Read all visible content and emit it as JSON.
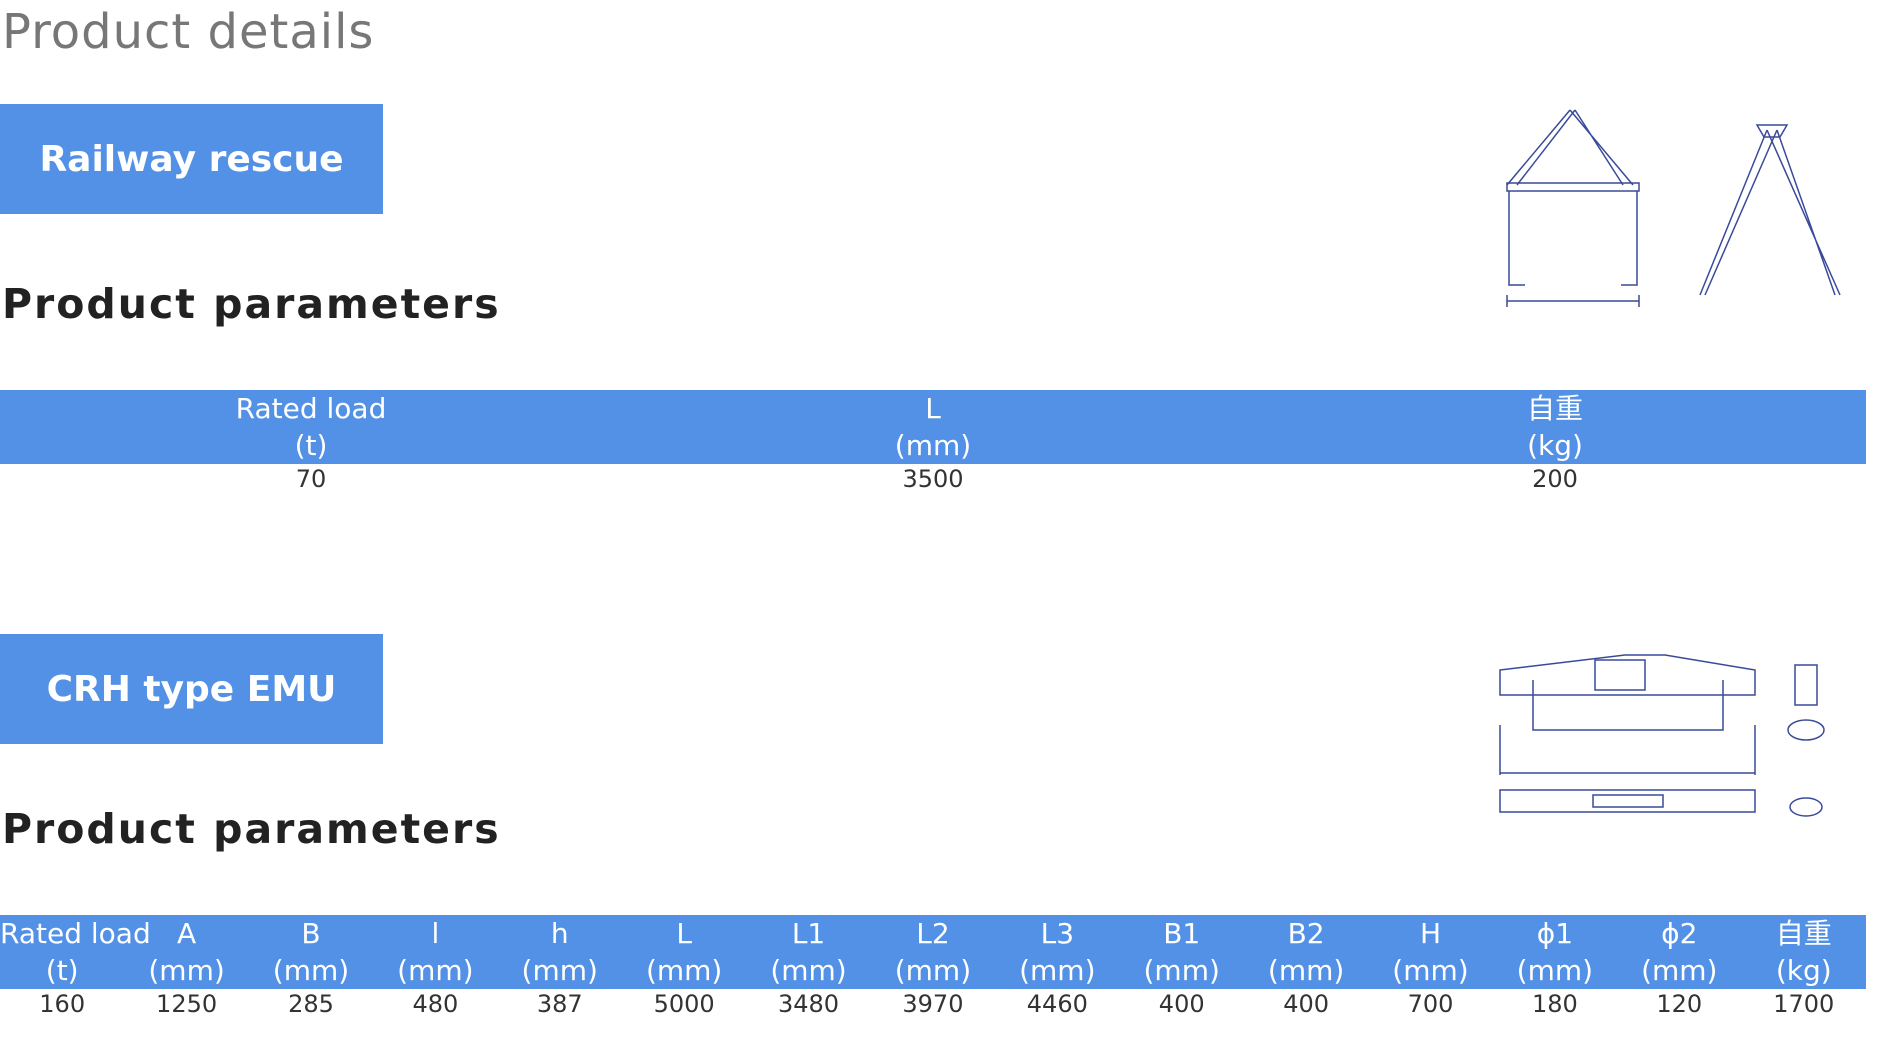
{
  "header": {
    "title": "Product details"
  },
  "sections": [
    {
      "title": "Railway rescue",
      "params_title": "Product parameters",
      "table": {
        "columns": [
          {
            "name": "Rated load",
            "unit": "(t)"
          },
          {
            "name": "L",
            "unit": "(mm)"
          },
          {
            "name": "自重",
            "unit": "(kg)"
          }
        ],
        "rows": [
          [
            "70",
            "3500",
            "200"
          ]
        ]
      }
    },
    {
      "title": "CRH type EMU",
      "params_title": "Product parameters",
      "table": {
        "columns": [
          {
            "name": "Rated load",
            "unit": "(t)"
          },
          {
            "name": "A",
            "unit": "(mm)"
          },
          {
            "name": "B",
            "unit": "(mm)"
          },
          {
            "name": "l",
            "unit": "(mm)"
          },
          {
            "name": "h",
            "unit": "(mm)"
          },
          {
            "name": "L",
            "unit": "(mm)"
          },
          {
            "name": "L1",
            "unit": "(mm)"
          },
          {
            "name": "L2",
            "unit": "(mm)"
          },
          {
            "name": "L3",
            "unit": "(mm)"
          },
          {
            "name": "B1",
            "unit": "(mm)"
          },
          {
            "name": "B2",
            "unit": "(mm)"
          },
          {
            "name": "H",
            "unit": "(mm)"
          },
          {
            "name": "ϕ1",
            "unit": "(mm)"
          },
          {
            "name": "ϕ2",
            "unit": "(mm)"
          },
          {
            "name": "自重",
            "unit": "(kg)"
          }
        ],
        "rows": [
          [
            "160",
            "1250",
            "285",
            "480",
            "387",
            "5000",
            "3480",
            "3970",
            "4460",
            "400",
            "400",
            "700",
            "180",
            "120",
            "1700"
          ]
        ]
      }
    }
  ]
}
